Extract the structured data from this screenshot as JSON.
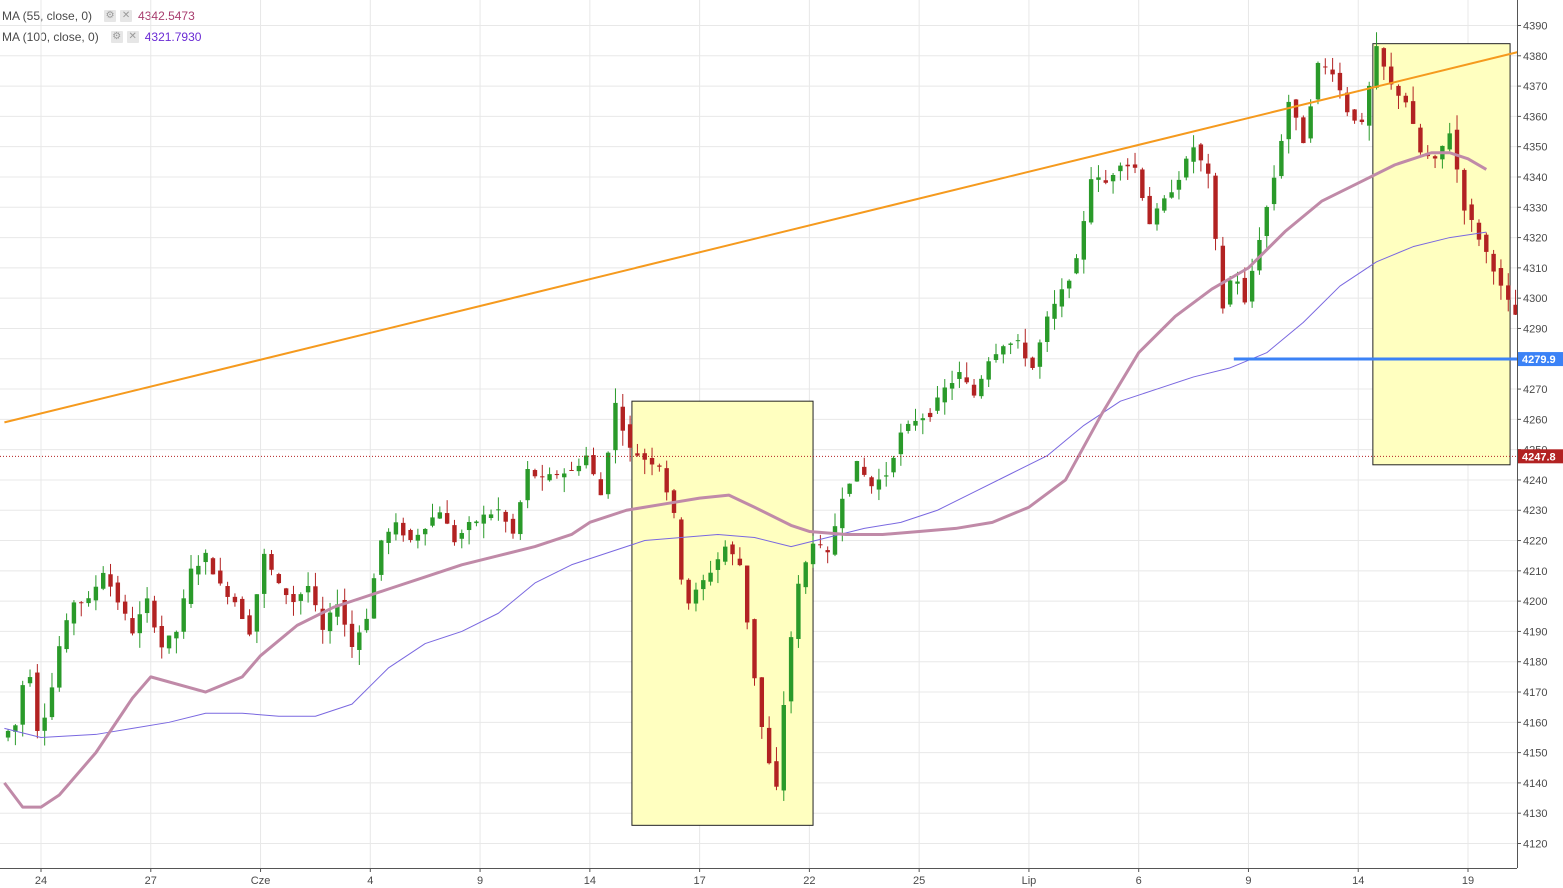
{
  "legend": [
    {
      "label": "MA (55, close, 0)",
      "value": "4342.5473",
      "color": "#a83d6e",
      "gear": "gear-icon",
      "close": "close-icon"
    },
    {
      "label": "MA (100, close, 0)",
      "value": "4321.7930",
      "color": "#6a2bd4",
      "gear": "gear-icon",
      "close": "close-icon"
    }
  ],
  "colors": {
    "up": "#2a9a2a",
    "down": "#b22222",
    "ma55": "#c08aa8",
    "ma100": "#7a68e0",
    "trend": "#f59a1e",
    "support": "#3b82f6",
    "price": "#b22222",
    "box_fill": "#ffffc0",
    "grid": "#e8e8e8"
  },
  "chart_data": {
    "type": "candlestick",
    "title": "",
    "xlabel": "",
    "ylabel": "",
    "ylim": [
      4115,
      4395
    ],
    "y_ticks": [
      4120,
      4130,
      4140,
      4150,
      4160,
      4170,
      4180,
      4190,
      4200,
      4210,
      4220,
      4230,
      4240,
      4250,
      4260,
      4270,
      4280,
      4290,
      4300,
      4310,
      4320,
      4330,
      4340,
      4350,
      4360,
      4370,
      4380,
      4390
    ],
    "x_days": [
      23,
      24,
      25,
      26,
      27,
      28,
      29,
      30,
      31,
      32,
      33,
      34,
      35,
      36,
      37,
      38,
      39,
      40,
      41,
      42,
      43,
      44,
      45,
      46,
      47,
      48,
      49,
      50,
      51,
      52,
      53,
      54,
      55,
      56,
      57,
      58,
      59,
      60,
      61
    ],
    "x_ticks": [
      {
        "label": "24",
        "day": 24
      },
      {
        "label": "27",
        "day": 27
      },
      {
        "label": "Cze",
        "day": 30
      },
      {
        "label": "4",
        "day": 33
      },
      {
        "label": "9",
        "day": 36
      },
      {
        "label": "14",
        "day": 39
      },
      {
        "label": "17",
        "day": 42
      },
      {
        "label": "22",
        "day": 45
      },
      {
        "label": "25",
        "day": 48
      },
      {
        "label": "Lip",
        "day": 51
      },
      {
        "label": "6",
        "day": 54
      },
      {
        "label": "9",
        "day": 57
      },
      {
        "label": "14",
        "day": 60
      },
      {
        "label": "19",
        "day": 63
      }
    ],
    "price_anchors": [
      [
        23.0,
        4155
      ],
      [
        23.5,
        4160
      ],
      [
        23.7,
        4185
      ],
      [
        24.0,
        4158
      ],
      [
        24.3,
        4165
      ],
      [
        24.6,
        4185
      ],
      [
        25.0,
        4200
      ],
      [
        25.4,
        4200
      ],
      [
        25.8,
        4210
      ],
      [
        26.2,
        4200
      ],
      [
        26.6,
        4190
      ],
      [
        27.0,
        4200
      ],
      [
        27.4,
        4185
      ],
      [
        27.8,
        4190
      ],
      [
        28.2,
        4210
      ],
      [
        28.6,
        4215
      ],
      [
        29.0,
        4205
      ],
      [
        29.4,
        4200
      ],
      [
        29.8,
        4190
      ],
      [
        30.2,
        4215
      ],
      [
        30.6,
        4205
      ],
      [
        31.0,
        4200
      ],
      [
        31.4,
        4205
      ],
      [
        31.8,
        4190
      ],
      [
        32.2,
        4200
      ],
      [
        32.6,
        4185
      ],
      [
        33.0,
        4195
      ],
      [
        33.4,
        4220
      ],
      [
        33.8,
        4225
      ],
      [
        34.2,
        4220
      ],
      [
        34.6,
        4225
      ],
      [
        35.0,
        4230
      ],
      [
        35.4,
        4220
      ],
      [
        35.8,
        4225
      ],
      [
        36.2,
        4228
      ],
      [
        36.6,
        4230
      ],
      [
        37.0,
        4222
      ],
      [
        37.4,
        4243
      ],
      [
        37.8,
        4240
      ],
      [
        38.2,
        4242
      ],
      [
        38.6,
        4243
      ],
      [
        39.0,
        4248
      ],
      [
        39.4,
        4235
      ],
      [
        39.8,
        4265
      ],
      [
        40.2,
        4250
      ],
      [
        40.6,
        4247
      ],
      [
        41.0,
        4245
      ],
      [
        41.4,
        4228
      ],
      [
        41.7,
        4198
      ],
      [
        42.0,
        4203
      ],
      [
        42.4,
        4210
      ],
      [
        42.8,
        4218
      ],
      [
        43.2,
        4212
      ],
      [
        43.6,
        4175
      ],
      [
        43.9,
        4150
      ],
      [
        44.2,
        4138
      ],
      [
        44.5,
        4180
      ],
      [
        44.8,
        4205
      ],
      [
        45.2,
        4220
      ],
      [
        45.6,
        4215
      ],
      [
        46.0,
        4235
      ],
      [
        46.4,
        4245
      ],
      [
        46.8,
        4238
      ],
      [
        47.2,
        4242
      ],
      [
        47.6,
        4255
      ],
      [
        48.0,
        4260
      ],
      [
        48.4,
        4262
      ],
      [
        48.8,
        4270
      ],
      [
        49.2,
        4275
      ],
      [
        49.6,
        4268
      ],
      [
        50.0,
        4280
      ],
      [
        50.4,
        4285
      ],
      [
        50.8,
        4285
      ],
      [
        51.2,
        4277
      ],
      [
        51.6,
        4293
      ],
      [
        52.0,
        4302
      ],
      [
        52.4,
        4312
      ],
      [
        52.8,
        4340
      ],
      [
        53.2,
        4338
      ],
      [
        53.6,
        4345
      ],
      [
        54.0,
        4343
      ],
      [
        54.4,
        4325
      ],
      [
        54.8,
        4332
      ],
      [
        55.2,
        4340
      ],
      [
        55.6,
        4350
      ],
      [
        56.0,
        4340
      ],
      [
        56.4,
        4297
      ],
      [
        56.7,
        4310
      ],
      [
        57.0,
        4298
      ],
      [
        57.4,
        4320
      ],
      [
        57.8,
        4340
      ],
      [
        58.2,
        4365
      ],
      [
        58.6,
        4352
      ],
      [
        59.0,
        4377
      ],
      [
        59.4,
        4375
      ],
      [
        59.8,
        4362
      ],
      [
        60.2,
        4357
      ],
      [
        60.6,
        4382
      ],
      [
        61.0,
        4370
      ],
      [
        61.4,
        4365
      ],
      [
        61.8,
        4348
      ],
      [
        62.2,
        4345
      ],
      [
        62.6,
        4355
      ],
      [
        63.0,
        4330
      ],
      [
        63.4,
        4320
      ],
      [
        63.8,
        4310
      ],
      [
        64.1,
        4300
      ],
      [
        64.3,
        4297
      ],
      [
        64.5,
        4292
      ],
      [
        64.8,
        4247.8
      ]
    ],
    "ma55": [
      [
        23.0,
        4140
      ],
      [
        23.5,
        4132
      ],
      [
        24.0,
        4132
      ],
      [
        24.5,
        4136
      ],
      [
        25.5,
        4150
      ],
      [
        26.5,
        4168
      ],
      [
        27.0,
        4175
      ],
      [
        28.5,
        4170
      ],
      [
        29.5,
        4175
      ],
      [
        30.0,
        4182
      ],
      [
        31.0,
        4192
      ],
      [
        32.0,
        4198
      ],
      [
        32.5,
        4200
      ],
      [
        33.5,
        4204
      ],
      [
        34.5,
        4208
      ],
      [
        35.5,
        4212
      ],
      [
        36.5,
        4215
      ],
      [
        37.5,
        4218
      ],
      [
        38.5,
        4222
      ],
      [
        39.0,
        4226
      ],
      [
        40.0,
        4230
      ],
      [
        41.0,
        4232
      ],
      [
        42.0,
        4234
      ],
      [
        42.8,
        4235
      ],
      [
        43.5,
        4231
      ],
      [
        44.5,
        4225
      ],
      [
        45.0,
        4223
      ],
      [
        46.0,
        4222
      ],
      [
        47.0,
        4222
      ],
      [
        48.0,
        4223
      ],
      [
        49.0,
        4224
      ],
      [
        50.0,
        4226
      ],
      [
        51.0,
        4231
      ],
      [
        52.0,
        4240
      ],
      [
        53.0,
        4262
      ],
      [
        54.0,
        4282
      ],
      [
        55.0,
        4294
      ],
      [
        56.0,
        4303
      ],
      [
        57.0,
        4310
      ],
      [
        58.0,
        4322
      ],
      [
        59.0,
        4332
      ],
      [
        60.0,
        4338
      ],
      [
        61.0,
        4344
      ],
      [
        62.0,
        4348
      ],
      [
        62.5,
        4348
      ],
      [
        63.0,
        4346
      ],
      [
        63.5,
        4342.5
      ]
    ],
    "ma100": [
      [
        23.0,
        4158
      ],
      [
        24.0,
        4155
      ],
      [
        25.5,
        4156
      ],
      [
        26.5,
        4158
      ],
      [
        27.5,
        4160
      ],
      [
        28.5,
        4163
      ],
      [
        29.5,
        4163
      ],
      [
        30.5,
        4162
      ],
      [
        31.5,
        4162
      ],
      [
        32.5,
        4166
      ],
      [
        33.5,
        4178
      ],
      [
        34.5,
        4186
      ],
      [
        35.5,
        4190
      ],
      [
        36.5,
        4196
      ],
      [
        37.5,
        4206
      ],
      [
        38.5,
        4212
      ],
      [
        39.5,
        4216
      ],
      [
        40.5,
        4220
      ],
      [
        41.5,
        4221
      ],
      [
        42.5,
        4222
      ],
      [
        43.5,
        4221
      ],
      [
        44.5,
        4218
      ],
      [
        45.5,
        4221
      ],
      [
        46.5,
        4224
      ],
      [
        47.5,
        4226
      ],
      [
        48.5,
        4230
      ],
      [
        49.5,
        4236
      ],
      [
        50.5,
        4242
      ],
      [
        51.5,
        4248
      ],
      [
        52.5,
        4258
      ],
      [
        53.5,
        4266
      ],
      [
        54.5,
        4270
      ],
      [
        55.5,
        4274
      ],
      [
        56.5,
        4277
      ],
      [
        57.5,
        4282
      ],
      [
        58.5,
        4292
      ],
      [
        59.5,
        4304
      ],
      [
        60.5,
        4312
      ],
      [
        61.5,
        4317
      ],
      [
        62.5,
        4320
      ],
      [
        63.5,
        4321.8
      ]
    ],
    "trendline": {
      "from": [
        23.0,
        4259
      ],
      "to": [
        65.3,
        4384
      ]
    },
    "support": {
      "value": 4279.9,
      "label": "4279.9",
      "from_day": 56.6
    },
    "current_price": {
      "value": 4247.8,
      "label": "4247.8"
    },
    "highlight_boxes": [
      {
        "day_start": 40.15,
        "day_end": 45.1,
        "y_low": 4126,
        "y_high": 4266
      },
      {
        "day_start": 60.4,
        "day_end": 64.15,
        "y_low": 4245,
        "y_high": 4384
      }
    ]
  }
}
